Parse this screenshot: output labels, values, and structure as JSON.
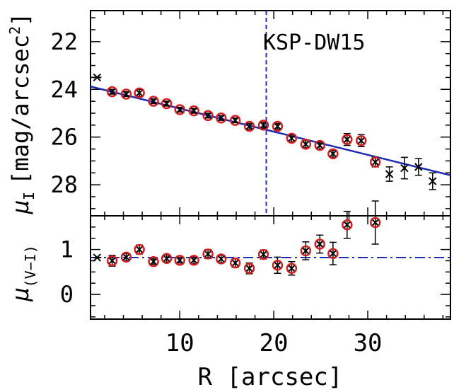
{
  "chart_data": [
    {
      "type": "scatter",
      "annotation": "KSP-DW15",
      "xlabel": "R [arcsec]",
      "ylabel": "μ_I [mag/arcsec²]",
      "ylabel_main": "μ",
      "ylabel_sub": "I",
      "ylabel_unit": "[mag/arcsec",
      "ylabel_sup": "2",
      "ylabel_close": "]",
      "xlim": [
        0.5,
        38.8
      ],
      "ylim": [
        29.3,
        20.7
      ],
      "y_inverted": true,
      "x_ticks": [
        10,
        20,
        30
      ],
      "x_tick_labels": [
        "10",
        "20",
        "30"
      ],
      "y_ticks": [
        22,
        24,
        26,
        28
      ],
      "y_tick_labels": [
        "22",
        "24",
        "26",
        "28"
      ],
      "vline_x": 19.2,
      "fit_line": {
        "x": [
          0.5,
          38.8
        ],
        "y": [
          23.88,
          27.6
        ]
      },
      "points_fitted": {
        "x": [
          2.8,
          4.3,
          5.7,
          7.2,
          8.6,
          10.0,
          11.5,
          13.0,
          14.4,
          15.9,
          17.4,
          18.9,
          20.4,
          21.9,
          23.4,
          24.9,
          26.3,
          27.8,
          29.3,
          30.8
        ],
        "y": [
          24.1,
          24.2,
          24.15,
          24.5,
          24.6,
          24.85,
          24.9,
          25.1,
          25.2,
          25.3,
          25.55,
          25.5,
          25.55,
          26.05,
          26.3,
          26.35,
          26.7,
          26.1,
          26.15,
          27.05
        ],
        "err": [
          0.1,
          0.1,
          0.15,
          0.1,
          0.1,
          0.1,
          0.1,
          0.1,
          0.1,
          0.1,
          0.12,
          0.12,
          0.12,
          0.15,
          0.15,
          0.15,
          0.15,
          0.25,
          0.25,
          0.2
        ]
      },
      "points_excluded": {
        "x": [
          32.3,
          33.9,
          35.4,
          36.9
        ],
        "y": [
          27.55,
          27.3,
          27.25,
          27.85
        ],
        "err": [
          0.3,
          0.45,
          0.35,
          0.35
        ]
      },
      "point_star": {
        "x": 1.2,
        "y": 23.5
      }
    },
    {
      "type": "scatter",
      "xlabel": "R [arcsec]",
      "ylabel": "μ_(V-I)",
      "ylabel_main": "μ",
      "ylabel_sub": "(V−I)",
      "xlim": [
        0.5,
        38.8
      ],
      "ylim": [
        -0.55,
        1.75
      ],
      "y_ticks": [
        0,
        1
      ],
      "y_tick_labels": [
        "0",
        "1"
      ],
      "hline_y": 0.82,
      "points_fitted": {
        "x": [
          2.8,
          4.3,
          5.7,
          7.2,
          8.6,
          10.0,
          11.5,
          13.0,
          14.4,
          15.9,
          17.4,
          18.9,
          20.4,
          21.9,
          23.4,
          24.9,
          26.3,
          27.8,
          30.8
        ],
        "y": [
          0.75,
          0.83,
          1.0,
          0.73,
          0.8,
          0.76,
          0.76,
          0.9,
          0.79,
          0.7,
          0.58,
          0.89,
          0.65,
          0.58,
          0.97,
          1.12,
          0.91,
          1.55,
          1.6
        ],
        "err": [
          0.12,
          0.08,
          0.1,
          0.06,
          0.08,
          0.06,
          0.08,
          0.1,
          0.08,
          0.1,
          0.12,
          0.1,
          0.18,
          0.15,
          0.2,
          0.2,
          0.25,
          0.3,
          0.48
        ]
      },
      "point_star": {
        "x": 1.2,
        "y": 0.82
      }
    }
  ],
  "colors": {
    "axes": "#000000",
    "fit_line": "#1f2bb0",
    "dashed_line": "#1f2bb0",
    "ring": "#d42020",
    "marker": "#000000"
  }
}
